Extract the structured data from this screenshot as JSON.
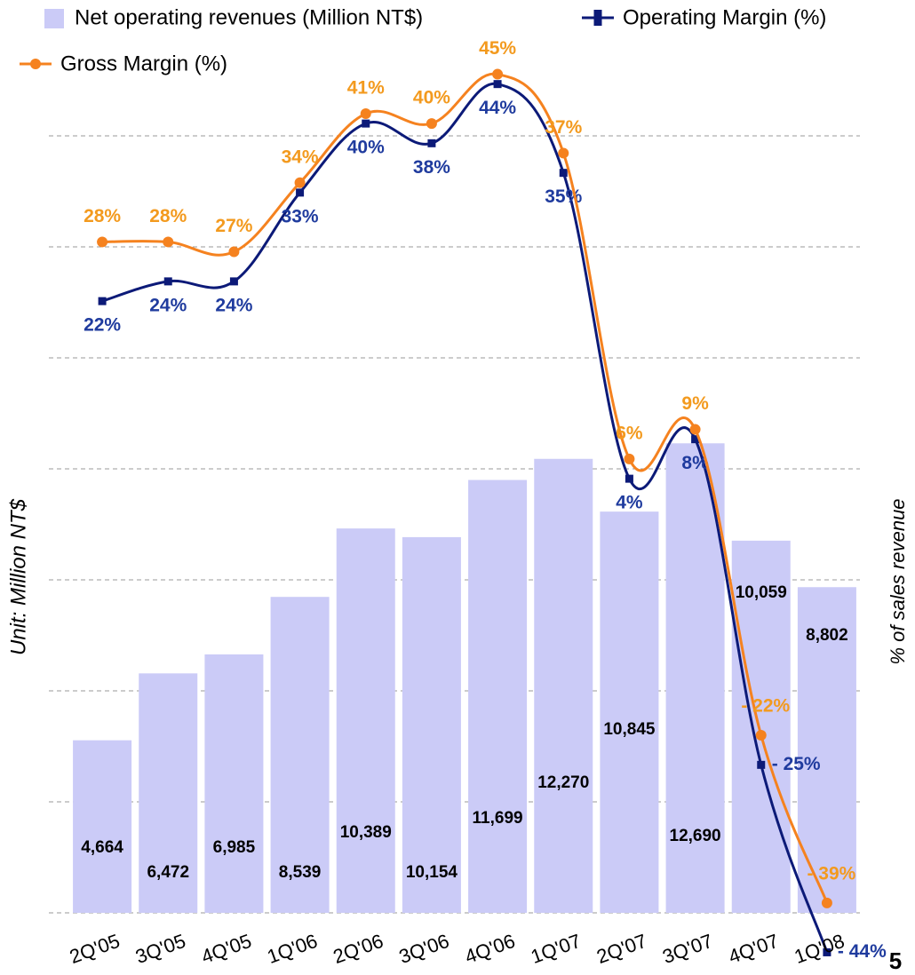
{
  "chart_data": {
    "type": "bar_line",
    "categories": [
      "2Q'05",
      "3Q'05",
      "4Q'05",
      "1Q'06",
      "2Q'06",
      "3Q'06",
      "4Q'06",
      "1Q'07",
      "2Q'07",
      "3Q'07",
      "4Q'07",
      "1Q'08"
    ],
    "y_label": "Unit: Million NT$",
    "y2_label": "% of sales revenue",
    "page_number": "5",
    "ylim": [
      0,
      24000
    ],
    "yticks": [
      0,
      3000,
      6000,
      9000,
      12000,
      15000,
      18000,
      21000
    ],
    "y2lim": [
      -40,
      50
    ],
    "grid": true,
    "series": [
      {
        "name": "Net operating revenues (Million NT$)",
        "color": "#cbcbf7",
        "kind": "bar",
        "values": [
          4664,
          6472,
          6985,
          8539,
          10389,
          10154,
          11699,
          12270,
          10845,
          12690,
          10059,
          8802
        ],
        "value_labels": [
          "4,664",
          "6,472",
          "6,985",
          "8,539",
          "10,389",
          "10,154",
          "11,699",
          "12,270",
          "10,845",
          "12,690",
          "10,059",
          "8,802"
        ]
      },
      {
        "name": "Operating Margin (%)",
        "color": "#0c1a78",
        "label_color": "#1f3b9e",
        "kind": "line",
        "axis": "y2",
        "values": [
          22,
          24,
          24,
          33,
          40,
          38,
          44,
          35,
          4,
          8,
          -25,
          -44
        ],
        "value_labels": [
          "22%",
          "24%",
          "24%",
          "33%",
          "40%",
          "38%",
          "44%",
          "35%",
          "4%",
          "8%",
          "- 25%",
          "- 44%"
        ]
      },
      {
        "name": "Gross Margin (%)",
        "color": "#f5821f",
        "label_color": "#f39a1e",
        "kind": "line",
        "axis": "y2",
        "values": [
          28,
          28,
          27,
          34,
          41,
          40,
          45,
          37,
          6,
          9,
          -22,
          -39
        ],
        "value_labels": [
          "28%",
          "28%",
          "27%",
          "34%",
          "41%",
          "40%",
          "45%",
          "37%",
          "6%",
          "9%",
          "- 22%",
          "- 39%"
        ]
      }
    ]
  }
}
